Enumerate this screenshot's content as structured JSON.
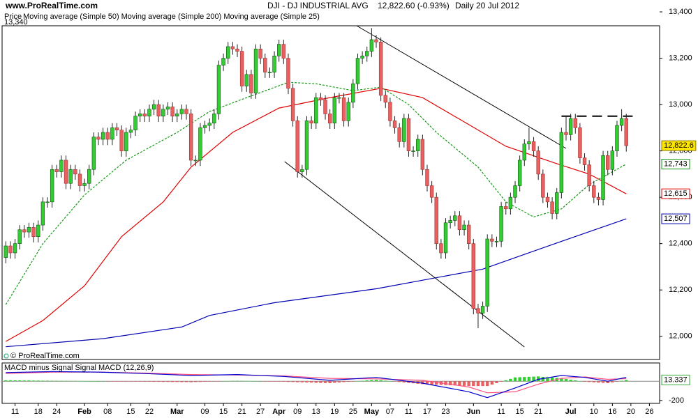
{
  "site": "www.ProRealTime.com",
  "copyright": "© ProRealTime.com",
  "chart_data": [
    {
      "type": "candlestick",
      "title": "DJI - DJ INDUSTRIAL AVG",
      "quote": "12,822.60 (-0.93%)",
      "period": "Daily  20 Jul 2012",
      "legend_title": "Price",
      "top_label": "13,340",
      "open": [
        12340,
        12390,
        12360,
        12400,
        12460,
        12450,
        12470,
        12430,
        12480,
        12580,
        12580,
        12720,
        12710,
        12760,
        12660,
        12720,
        12700,
        12650,
        12660,
        12720,
        12860,
        12850,
        12880,
        12850,
        12900,
        12890,
        12800,
        12880,
        12890,
        12950,
        12960,
        12950,
        12980,
        13000,
        12950,
        12980,
        12990,
        12950,
        12960,
        12980,
        12960,
        12760,
        12760,
        12900,
        12910,
        12920,
        12960,
        13170,
        13200,
        13250,
        13240,
        13230,
        13080,
        13130,
        13050,
        13240,
        13200,
        13140,
        13140,
        13210,
        13260,
        13200,
        13070,
        12930,
        12710,
        12720,
        12930,
        12920,
        13030,
        13020,
        12960,
        12920,
        13030,
        13030,
        12930,
        13010,
        13090,
        13200,
        13210,
        13230,
        13280,
        13270,
        13040,
        13010,
        12930,
        12900,
        12840,
        12940,
        12800,
        12800,
        12850,
        12720,
        12650,
        12600,
        12400,
        12360,
        12490,
        12500,
        12520,
        12460,
        12480,
        12400,
        12120,
        12100,
        12130,
        12420,
        12410,
        12410,
        12560,
        12550,
        12600,
        12650,
        12760,
        12830,
        12840,
        12800,
        12700,
        12600,
        12580,
        12530,
        12620,
        12880,
        12870,
        12940,
        12900,
        12770,
        12740,
        12650,
        12600,
        12590,
        12780,
        12720,
        12800,
        12910,
        12940
      ],
      "high": [
        12410,
        12410,
        12420,
        12480,
        12480,
        12490,
        12490,
        12500,
        12600,
        12600,
        12740,
        12740,
        12780,
        12780,
        12740,
        12740,
        12720,
        12680,
        12740,
        12880,
        12880,
        12900,
        12900,
        12920,
        12920,
        12910,
        12900,
        12910,
        12970,
        12980,
        12980,
        13000,
        13020,
        13020,
        13000,
        13010,
        13010,
        12980,
        13000,
        13000,
        12980,
        12780,
        12920,
        12930,
        12940,
        12980,
        13190,
        13220,
        13270,
        13270,
        13260,
        13250,
        13150,
        13150,
        13260,
        13260,
        13220,
        13160,
        13230,
        13280,
        13280,
        13220,
        13090,
        12950,
        12740,
        12950,
        12950,
        13050,
        13050,
        13040,
        12980,
        13050,
        13050,
        13050,
        13030,
        13110,
        13220,
        13230,
        13250,
        13330,
        13300,
        13290,
        13060,
        13030,
        12950,
        12920,
        12960,
        12960,
        12820,
        12870,
        12870,
        12740,
        12670,
        12620,
        12420,
        12510,
        12520,
        12540,
        12540,
        12500,
        12500,
        12420,
        12140,
        12150,
        12440,
        12440,
        12430,
        12580,
        12580,
        12620,
        12670,
        12780,
        12850,
        12900,
        12860,
        12820,
        12720,
        12620,
        12600,
        12640,
        12900,
        12950,
        12960,
        12960,
        12920,
        12790,
        12760,
        12670,
        12620,
        12800,
        12800,
        12820,
        12930,
        12980,
        12960
      ],
      "low": [
        12315,
        12335,
        12335,
        12375,
        12425,
        12425,
        12405,
        12405,
        12455,
        12555,
        12555,
        12685,
        12685,
        12635,
        12635,
        12675,
        12625,
        12625,
        12635,
        12695,
        12825,
        12825,
        12825,
        12825,
        12865,
        12775,
        12775,
        12855,
        12865,
        12925,
        12925,
        12925,
        12955,
        12925,
        12925,
        12955,
        12925,
        12925,
        12935,
        12935,
        12735,
        12735,
        12735,
        12875,
        12885,
        12895,
        12935,
        13145,
        13175,
        13215,
        13205,
        13055,
        13055,
        13025,
        13025,
        13175,
        13115,
        13115,
        13115,
        13185,
        13175,
        13045,
        12905,
        12685,
        12685,
        12695,
        12895,
        12895,
        12995,
        12935,
        12895,
        12895,
        13005,
        12905,
        12905,
        12985,
        13065,
        13175,
        13185,
        13205,
        13245,
        13015,
        12985,
        12905,
        12875,
        12815,
        12815,
        12775,
        12775,
        12775,
        12695,
        12625,
        12575,
        12375,
        12335,
        12335,
        12465,
        12475,
        12435,
        12435,
        12375,
        12095,
        12035,
        12075,
        12105,
        12385,
        12385,
        12385,
        12525,
        12525,
        12575,
        12625,
        12735,
        12805,
        12775,
        12675,
        12575,
        12555,
        12505,
        12505,
        12595,
        12845,
        12845,
        12875,
        12745,
        12715,
        12625,
        12575,
        12565,
        12565,
        12695,
        12695,
        12775,
        12885,
        12797
      ],
      "close": [
        12390,
        12360,
        12400,
        12460,
        12450,
        12470,
        12430,
        12480,
        12580,
        12580,
        12720,
        12710,
        12760,
        12660,
        12720,
        12700,
        12650,
        12660,
        12720,
        12860,
        12850,
        12880,
        12850,
        12900,
        12890,
        12800,
        12880,
        12890,
        12950,
        12960,
        12950,
        12980,
        13000,
        12950,
        12980,
        12990,
        12950,
        12960,
        12980,
        12960,
        12760,
        12760,
        12900,
        12910,
        12920,
        12960,
        13170,
        13200,
        13250,
        13240,
        13230,
        13080,
        13130,
        13050,
        13240,
        13200,
        13140,
        13140,
        13210,
        13260,
        13200,
        13070,
        12930,
        12710,
        12720,
        12930,
        12920,
        13030,
        13020,
        12960,
        12920,
        13030,
        13030,
        12930,
        13010,
        13090,
        13200,
        13210,
        13230,
        13280,
        13270,
        13040,
        13010,
        12930,
        12900,
        12840,
        12940,
        12800,
        12800,
        12850,
        12720,
        12650,
        12600,
        12400,
        12360,
        12490,
        12500,
        12520,
        12460,
        12480,
        12400,
        12120,
        12100,
        12130,
        12420,
        12410,
        12410,
        12560,
        12550,
        12600,
        12650,
        12760,
        12830,
        12840,
        12800,
        12700,
        12600,
        12580,
        12530,
        12620,
        12880,
        12870,
        12940,
        12900,
        12770,
        12740,
        12650,
        12600,
        12590,
        12780,
        12720,
        12800,
        12910,
        12940,
        12822.6
      ],
      "up_color": "#33cc33",
      "down_color": "#e8605f",
      "last_label": "12,822.6",
      "lines": [
        {
          "name": "Moving average (Simple 50)",
          "color": "#e00000",
          "x": [
            0,
            8,
            17,
            25,
            34,
            40,
            49,
            59,
            70,
            81,
            90,
            99,
            108,
            119,
            126,
            134
          ],
          "values": [
            11978,
            12068,
            12218,
            12430,
            12580,
            12730,
            12880,
            12985,
            13030,
            13070,
            13030,
            12925,
            12820,
            12745,
            12700,
            12615
          ],
          "last_label": "12,615"
        },
        {
          "name": "Moving average (Simple 200)",
          "color": "#0000b0",
          "x": [
            0,
            21,
            38,
            44,
            58,
            80,
            103,
            120,
            134
          ],
          "values": [
            11955,
            11990,
            12040,
            12090,
            12145,
            12205,
            12290,
            12410,
            12507
          ],
          "last_label": "12,507"
        },
        {
          "name": "Moving average (Simple 25)",
          "color": "#119911",
          "dashed": true,
          "x": [
            0,
            8,
            17,
            26,
            37,
            44,
            52,
            61,
            67,
            75,
            81,
            87,
            93,
            102,
            108,
            114,
            120,
            126,
            134
          ],
          "values": [
            12137,
            12400,
            12610,
            12760,
            12880,
            12970,
            13030,
            13096,
            13090,
            13060,
            13075,
            13000,
            12880,
            12730,
            12580,
            12515,
            12550,
            12655,
            12743
          ],
          "last_label": "12,743"
        }
      ],
      "trendlines": [
        {
          "x": [
            75.8,
            121
          ],
          "values": [
            13340,
            12811
          ]
        },
        {
          "x": [
            60.2,
            112
          ],
          "values": [
            12754,
            11954
          ]
        },
        {
          "x": [
            120,
            136
          ],
          "values": [
            12950,
            12950
          ],
          "dashed": true
        }
      ],
      "xlim": [
        -0.8,
        141.2
      ],
      "ylim": [
        11900,
        13340
      ],
      "yticks": [
        {
          "value": 13400,
          "label": "13,400"
        },
        {
          "value": 13200,
          "label": "13,200"
        },
        {
          "value": 13000,
          "label": "13,000"
        },
        {
          "value": 12800,
          "label": "12,800"
        },
        {
          "value": 12600,
          "label": "12,600"
        },
        {
          "value": 12400,
          "label": "12,400"
        },
        {
          "value": 12200,
          "label": "12,200"
        },
        {
          "value": 12000,
          "label": "12,000"
        }
      ],
      "xticks": [
        {
          "value": 2,
          "label": "11"
        },
        {
          "value": 7,
          "label": "18"
        },
        {
          "value": 11,
          "label": "24"
        },
        {
          "value": 17,
          "label": "Feb"
        },
        {
          "value": 22,
          "label": "08"
        },
        {
          "value": 27,
          "label": "15"
        },
        {
          "value": 31,
          "label": "22"
        },
        {
          "value": 37,
          "label": "Mar"
        },
        {
          "value": 43,
          "label": "09"
        },
        {
          "value": 47,
          "label": "15"
        },
        {
          "value": 51,
          "label": "21"
        },
        {
          "value": 55,
          "label": "27"
        },
        {
          "value": 59,
          "label": "Apr"
        },
        {
          "value": 63,
          "label": "09"
        },
        {
          "value": 67,
          "label": "13"
        },
        {
          "value": 71,
          "label": "19"
        },
        {
          "value": 75,
          "label": "25"
        },
        {
          "value": 79,
          "label": "May"
        },
        {
          "value": 83,
          "label": "07"
        },
        {
          "value": 87,
          "label": "11"
        },
        {
          "value": 91,
          "label": "17"
        },
        {
          "value": 95,
          "label": "23"
        },
        {
          "value": 101,
          "label": "Jun"
        },
        {
          "value": 107,
          "label": "11"
        },
        {
          "value": 111,
          "label": "15"
        },
        {
          "value": 115,
          "label": "21"
        },
        {
          "value": 122,
          "label": "Jul"
        },
        {
          "value": 127,
          "label": "10"
        },
        {
          "value": 131,
          "label": "16"
        },
        {
          "value": 135,
          "label": "20"
        },
        {
          "value": 139,
          "label": "26"
        }
      ]
    },
    {
      "type": "macd",
      "xlim": [
        -0.8,
        141.2
      ],
      "ylim": [
        -230,
        190
      ],
      "yticks": [
        -200
      ],
      "series": [
        {
          "name": "MACD minus Signal",
          "color": "#33cc33",
          "negative_color": "#e8605f",
          "last_label": "13.337",
          "values": [
            10,
            10,
            9,
            9,
            8,
            8,
            7,
            7,
            6,
            6,
            5,
            5,
            4,
            4,
            3,
            3,
            2,
            2,
            1,
            1,
            0,
            0,
            -1,
            -1,
            -2,
            -2,
            -3,
            -3,
            -4,
            -4,
            -5,
            -5,
            -6,
            -6,
            -7,
            -7,
            -8,
            -8,
            -9,
            -9,
            -10,
            -8,
            -7,
            -5,
            -4,
            -2,
            -1,
            1,
            2,
            4,
            5,
            4,
            3,
            2,
            1,
            0,
            -1,
            -2,
            -3,
            -4,
            -5,
            -7,
            -8,
            -10,
            -11,
            -13,
            -14,
            -16,
            -17,
            -19,
            -20,
            -16,
            -13,
            -9,
            -6,
            -2,
            2,
            5,
            9,
            12,
            15,
            11,
            6,
            2,
            -3,
            -8,
            -12,
            -17,
            -21,
            -26,
            -30,
            -32,
            -34,
            -36,
            -38,
            -40,
            -42,
            -44,
            -46,
            -48,
            -50,
            -50,
            -50,
            -50,
            -50,
            -35,
            -20,
            -5,
            10,
            25,
            40,
            42,
            44,
            46,
            48,
            50,
            46,
            42,
            38,
            34,
            30,
            23,
            16,
            9,
            2,
            -5,
            -8,
            -11,
            -14,
            -17,
            -20,
            -12,
            -4,
            5,
            13.337
          ]
        },
        {
          "name": "Signal",
          "color": "#ff5080",
          "x": [
            0,
            10,
            20,
            30,
            40,
            50,
            60,
            70,
            80,
            90,
            100,
            104,
            110,
            115,
            120,
            125,
            130,
            134
          ],
          "values": [
            80,
            95,
            95,
            85,
            70,
            65,
            55,
            30,
            25,
            10,
            -60,
            -120,
            -110,
            -30,
            30,
            45,
            20,
            27
          ]
        },
        {
          "name": "MACD (12,26,9)",
          "color": "#0000cc",
          "x": [
            0,
            10,
            20,
            30,
            40,
            50,
            60,
            70,
            80,
            90,
            100,
            104,
            110,
            115,
            120,
            125,
            130,
            134
          ],
          "values": [
            90,
            100,
            95,
            80,
            60,
            70,
            50,
            10,
            40,
            -20,
            -110,
            -170,
            -70,
            20,
            60,
            40,
            0,
            40
          ]
        }
      ]
    }
  ]
}
